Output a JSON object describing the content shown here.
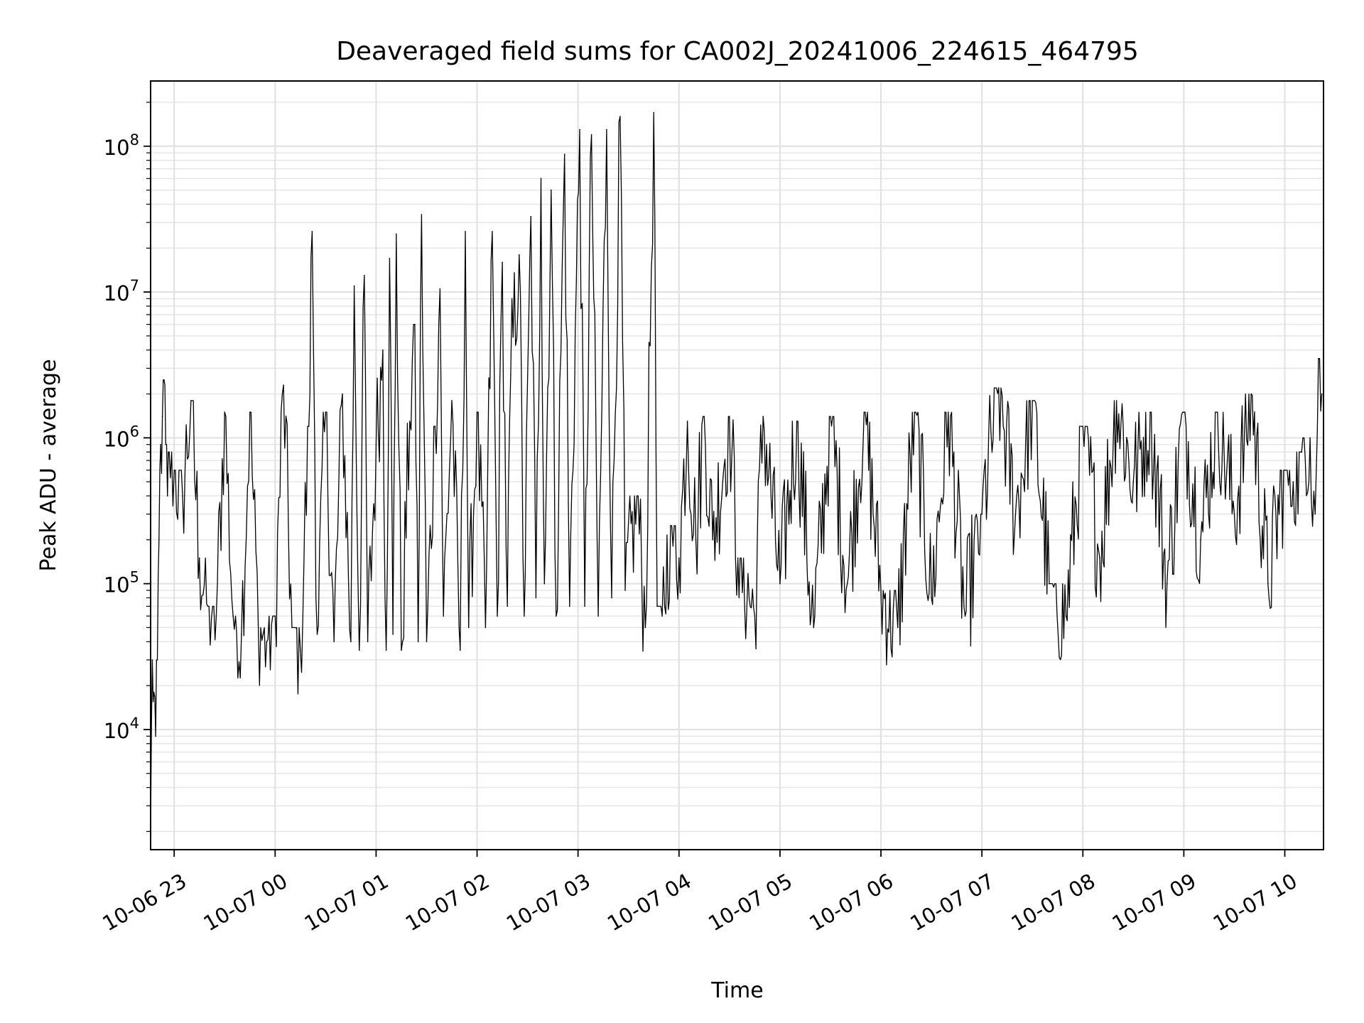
{
  "chart_data": {
    "type": "line",
    "title": "Deaveraged field sums for CA002J_20241006_224615_464795",
    "xlabel": "Time",
    "ylabel": "Peak ADU - average",
    "yscale": "log",
    "grid": true,
    "line_color": "#000000",
    "xlim": [
      "2024-10-06 22:46",
      "2024-10-07 10:23"
    ],
    "ylim": [
      1500,
      280000000
    ],
    "x_ticks": [
      {
        "t": "2024-10-06 23:00",
        "label": "10-06 23"
      },
      {
        "t": "2024-10-07 00:00",
        "label": "10-07 00"
      },
      {
        "t": "2024-10-07 01:00",
        "label": "10-07 01"
      },
      {
        "t": "2024-10-07 02:00",
        "label": "10-07 02"
      },
      {
        "t": "2024-10-07 03:00",
        "label": "10-07 03"
      },
      {
        "t": "2024-10-07 04:00",
        "label": "10-07 04"
      },
      {
        "t": "2024-10-07 05:00",
        "label": "10-07 05"
      },
      {
        "t": "2024-10-07 06:00",
        "label": "10-07 06"
      },
      {
        "t": "2024-10-07 07:00",
        "label": "10-07 07"
      },
      {
        "t": "2024-10-07 08:00",
        "label": "10-07 08"
      },
      {
        "t": "2024-10-07 09:00",
        "label": "10-07 09"
      },
      {
        "t": "2024-10-07 10:00",
        "label": "10-07 10"
      }
    ],
    "y_ticks": [
      {
        "value": 10000,
        "base": "10",
        "exp": "4"
      },
      {
        "value": 100000,
        "base": "10",
        "exp": "5"
      },
      {
        "value": 1000000,
        "base": "10",
        "exp": "6"
      },
      {
        "value": 10000000,
        "base": "10",
        "exp": "7"
      },
      {
        "value": 100000000,
        "base": "10",
        "exp": "8"
      }
    ],
    "series": [
      {
        "color": "#000000",
        "points": [
          [
            "2024-10-06 22:46",
            2000
          ],
          [
            "2024-10-06 22:47",
            30000
          ],
          [
            "2024-10-06 22:48",
            18000
          ],
          [
            "2024-10-06 22:49",
            9000
          ],
          [
            "2024-10-06 22:50",
            30000
          ],
          [
            "2024-10-06 22:51",
            200000
          ],
          [
            "2024-10-06 22:52",
            900000
          ],
          [
            "2024-10-06 22:53",
            1400000
          ],
          [
            "2024-10-06 22:54",
            2500000
          ],
          [
            "2024-10-06 22:55",
            900000
          ],
          [
            "2024-10-06 22:56",
            400000
          ],
          [
            "2024-10-06 22:57",
            800000
          ],
          [
            "2024-10-06 23:00",
            600000
          ],
          [
            "2024-10-06 23:05",
            400000
          ],
          [
            "2024-10-06 23:10",
            1800000
          ],
          [
            "2024-10-06 23:15",
            150000
          ],
          [
            "2024-10-06 23:20",
            70000
          ],
          [
            "2024-10-06 23:25",
            60000
          ],
          [
            "2024-10-06 23:30",
            1500000
          ],
          [
            "2024-10-06 23:35",
            60000
          ],
          [
            "2024-10-06 23:40",
            45000
          ],
          [
            "2024-10-06 23:45",
            1500000
          ],
          [
            "2024-10-06 23:50",
            50000
          ],
          [
            "2024-10-06 23:55",
            40000
          ],
          [
            "2024-10-07 00:00",
            60000
          ],
          [
            "2024-10-07 00:05",
            2300000
          ],
          [
            "2024-10-07 00:10",
            50000
          ],
          [
            "2024-10-07 00:15",
            35000
          ],
          [
            "2024-10-07 00:20",
            1200000
          ],
          [
            "2024-10-07 00:22",
            26000000
          ],
          [
            "2024-10-07 00:25",
            45000
          ],
          [
            "2024-10-07 00:30",
            1500000
          ],
          [
            "2024-10-07 00:35",
            40000
          ],
          [
            "2024-10-07 00:40",
            2000000
          ],
          [
            "2024-10-07 00:45",
            40000
          ],
          [
            "2024-10-07 00:47",
            11000000
          ],
          [
            "2024-10-07 00:50",
            35000
          ],
          [
            "2024-10-07 00:53",
            13000000
          ],
          [
            "2024-10-07 00:55",
            40000
          ],
          [
            "2024-10-07 01:00",
            900000
          ],
          [
            "2024-10-07 01:04",
            4000000
          ],
          [
            "2024-10-07 01:06",
            35000
          ],
          [
            "2024-10-07 01:08",
            17000000
          ],
          [
            "2024-10-07 01:10",
            45000
          ],
          [
            "2024-10-07 01:12",
            25000000
          ],
          [
            "2024-10-07 01:15",
            35000
          ],
          [
            "2024-10-07 01:20",
            1300000
          ],
          [
            "2024-10-07 01:23",
            6000000
          ],
          [
            "2024-10-07 01:25",
            40000
          ],
          [
            "2024-10-07 01:27",
            34000000
          ],
          [
            "2024-10-07 01:30",
            40000
          ],
          [
            "2024-10-07 01:35",
            1200000
          ],
          [
            "2024-10-07 01:38",
            10500000
          ],
          [
            "2024-10-07 01:40",
            60000
          ],
          [
            "2024-10-07 01:45",
            1800000
          ],
          [
            "2024-10-07 01:50",
            35000
          ],
          [
            "2024-10-07 01:53",
            26000000
          ],
          [
            "2024-10-07 01:55",
            50000
          ],
          [
            "2024-10-07 02:00",
            1500000
          ],
          [
            "2024-10-07 02:05",
            50000
          ],
          [
            "2024-10-07 02:09",
            26000000
          ],
          [
            "2024-10-07 02:12",
            60000
          ],
          [
            "2024-10-07 02:15",
            16000000
          ],
          [
            "2024-10-07 02:18",
            70000
          ],
          [
            "2024-10-07 02:20",
            2700000
          ],
          [
            "2024-10-07 02:25",
            18000000
          ],
          [
            "2024-10-07 02:28",
            60000
          ],
          [
            "2024-10-07 02:32",
            33000000
          ],
          [
            "2024-10-07 02:35",
            80000
          ],
          [
            "2024-10-07 02:38",
            60000000
          ],
          [
            "2024-10-07 02:40",
            100000
          ],
          [
            "2024-10-07 02:44",
            50000000
          ],
          [
            "2024-10-07 02:47",
            60000
          ],
          [
            "2024-10-07 02:52",
            88000000
          ],
          [
            "2024-10-07 02:55",
            70000
          ],
          [
            "2024-10-07 03:01",
            130000000
          ],
          [
            "2024-10-07 03:04",
            70000
          ],
          [
            "2024-10-07 03:08",
            120000000
          ],
          [
            "2024-10-07 03:12",
            60000
          ],
          [
            "2024-10-07 03:17",
            130000000
          ],
          [
            "2024-10-07 03:20",
            80000
          ],
          [
            "2024-10-07 03:25",
            160000000
          ],
          [
            "2024-10-07 03:28",
            90000
          ],
          [
            "2024-10-07 03:35",
            400000
          ],
          [
            "2024-10-07 03:40",
            50000
          ],
          [
            "2024-10-07 03:45",
            170000000
          ],
          [
            "2024-10-07 03:47",
            70000
          ],
          [
            "2024-10-07 03:50",
            60000
          ],
          [
            "2024-10-07 03:55",
            250000
          ],
          [
            "2024-10-07 04:00",
            150000
          ],
          [
            "2024-10-07 04:05",
            1300000
          ],
          [
            "2024-10-07 04:10",
            200000
          ],
          [
            "2024-10-07 04:15",
            1400000
          ],
          [
            "2024-10-07 04:20",
            200000
          ],
          [
            "2024-10-07 04:30",
            1400000
          ],
          [
            "2024-10-07 04:35",
            150000
          ],
          [
            "2024-10-07 04:45",
            60000
          ],
          [
            "2024-10-07 04:50",
            1400000
          ],
          [
            "2024-10-07 05:00",
            100000
          ],
          [
            "2024-10-07 05:10",
            1300000
          ],
          [
            "2024-10-07 05:20",
            50000
          ],
          [
            "2024-10-07 05:30",
            1400000
          ],
          [
            "2024-10-07 05:40",
            100000
          ],
          [
            "2024-10-07 05:50",
            1500000
          ],
          [
            "2024-10-07 06:00",
            90000
          ],
          [
            "2024-10-07 06:10",
            50000
          ],
          [
            "2024-10-07 06:20",
            1500000
          ],
          [
            "2024-10-07 06:30",
            80000
          ],
          [
            "2024-10-07 06:40",
            1500000
          ],
          [
            "2024-10-07 06:50",
            60000
          ],
          [
            "2024-10-07 07:00",
            300000
          ],
          [
            "2024-10-07 07:10",
            2200000
          ],
          [
            "2024-10-07 07:20",
            300000
          ],
          [
            "2024-10-07 07:30",
            1800000
          ],
          [
            "2024-10-07 07:40",
            100000
          ],
          [
            "2024-10-07 07:50",
            60000
          ],
          [
            "2024-10-07 08:00",
            1200000
          ],
          [
            "2024-10-07 08:10",
            150000
          ],
          [
            "2024-10-07 08:20",
            1800000
          ],
          [
            "2024-10-07 08:30",
            500000
          ],
          [
            "2024-10-07 08:40",
            1500000
          ],
          [
            "2024-10-07 08:50",
            100000
          ],
          [
            "2024-10-07 09:00",
            1500000
          ],
          [
            "2024-10-07 09:10",
            200000
          ],
          [
            "2024-10-07 09:20",
            1500000
          ],
          [
            "2024-10-07 09:30",
            300000
          ],
          [
            "2024-10-07 09:40",
            2000000
          ],
          [
            "2024-10-07 09:50",
            100000
          ],
          [
            "2024-10-07 10:00",
            600000
          ],
          [
            "2024-10-07 10:05",
            500000
          ],
          [
            "2024-10-07 10:10",
            800000
          ],
          [
            "2024-10-07 10:15",
            1000000
          ],
          [
            "2024-10-07 10:18",
            300000
          ],
          [
            "2024-10-07 10:20",
            3500000
          ],
          [
            "2024-10-07 10:22",
            2000000
          ]
        ]
      }
    ]
  }
}
